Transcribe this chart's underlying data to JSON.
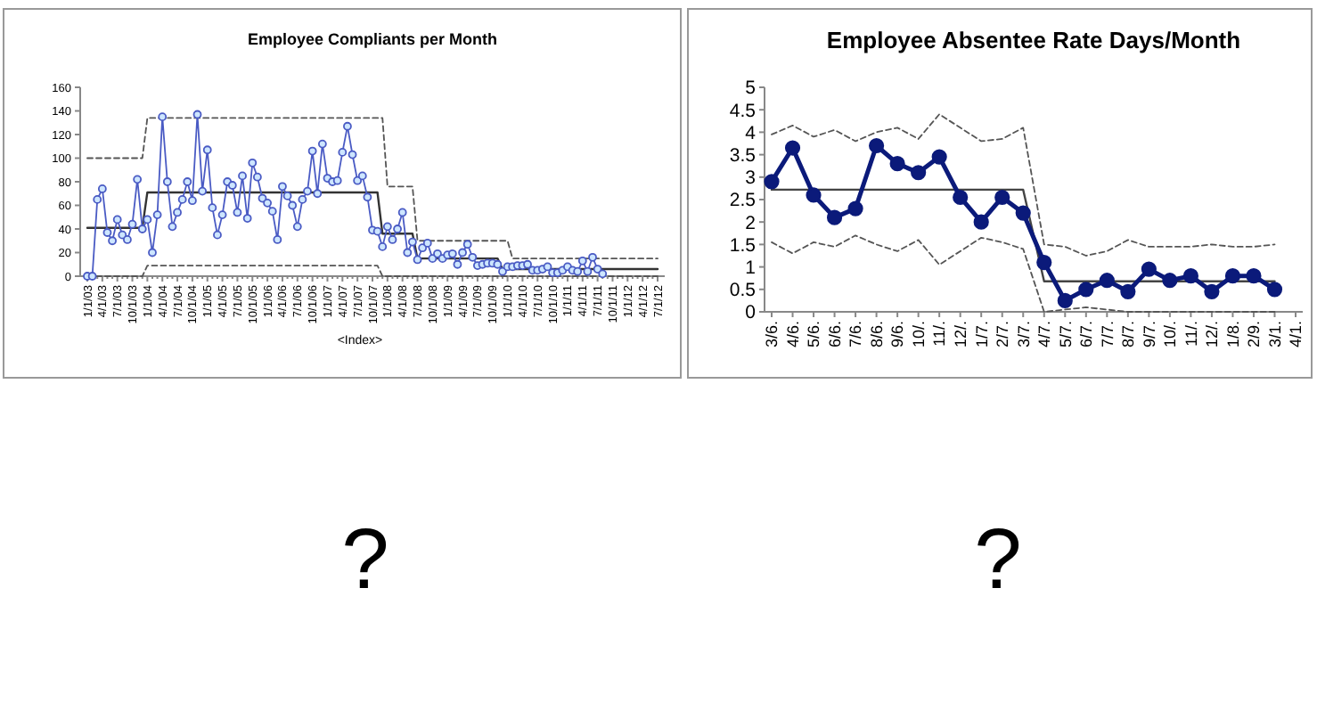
{
  "chart_data": [
    {
      "type": "line",
      "title": "Employee Compliants per Month",
      "xlabel": "<Index>",
      "marker": "circle",
      "ylim": [
        0,
        160
      ],
      "yticks": [
        0,
        20,
        40,
        60,
        80,
        100,
        120,
        140,
        160
      ],
      "annotations": [
        "?"
      ],
      "categories": [
        "1/1/03",
        null,
        null,
        "4/1/03",
        null,
        null,
        "7/1/03",
        null,
        null,
        "10/1/03",
        null,
        null,
        "1/1/04",
        null,
        null,
        "4/1/04",
        null,
        null,
        "7/1/04",
        null,
        null,
        "10/1/04",
        null,
        null,
        "1/1/05",
        null,
        null,
        "4/1/05",
        null,
        null,
        "7/1/05",
        null,
        null,
        "10/1/05",
        null,
        null,
        "1/1/06",
        null,
        null,
        "4/1/06",
        null,
        null,
        "7/1/06",
        null,
        null,
        "10/1/06",
        null,
        null,
        "1/1/07",
        null,
        null,
        "4/1/07",
        null,
        null,
        "7/1/07",
        null,
        null,
        "10/1/07",
        null,
        null,
        "1/1/08",
        null,
        null,
        "4/1/08",
        null,
        null,
        "7/1/08",
        null,
        null,
        "10/1/08",
        null,
        null,
        "1/1/09",
        null,
        null,
        "4/1/09",
        null,
        null,
        "7/1/09",
        null,
        null,
        "10/1/09",
        null,
        null,
        "1/1/10",
        null,
        null,
        "4/1/10",
        null,
        null,
        "7/1/10",
        null,
        null,
        "10/1/10",
        null,
        null,
        "1/1/11",
        null,
        null,
        "4/1/11",
        null,
        null,
        "7/1/11",
        null,
        null,
        "10/1/11",
        null,
        null,
        "1/1/12",
        null,
        null,
        "4/1/12",
        null,
        null,
        "7/1/12"
      ],
      "series": [
        {
          "color": "#333333",
          "marker": "none",
          "values": [
            41,
            41,
            41,
            41,
            41,
            41,
            41,
            41,
            41,
            41,
            41,
            41,
            71,
            71,
            71,
            71,
            71,
            71,
            71,
            71,
            71,
            71,
            71,
            71,
            71,
            71,
            71,
            71,
            71,
            71,
            71,
            71,
            71,
            71,
            71,
            71,
            71,
            71,
            71,
            71,
            71,
            71,
            71,
            71,
            71,
            71,
            71,
            71,
            71,
            71,
            71,
            71,
            71,
            71,
            71,
            71,
            71,
            71,
            71,
            36,
            36,
            36,
            36,
            36,
            36,
            36,
            15,
            15,
            15,
            15,
            15,
            15,
            15,
            15,
            15,
            15,
            15,
            15,
            15,
            15,
            15,
            15,
            15,
            6,
            6,
            6,
            6,
            6,
            6,
            6,
            6,
            6,
            6,
            6,
            6,
            6,
            6,
            6,
            6,
            6,
            6,
            6,
            6,
            6,
            6,
            6,
            6,
            6,
            6,
            6,
            6,
            6,
            6,
            6,
            6
          ]
        },
        {
          "color": "#555555",
          "marker": "none",
          "line_style": "dashed",
          "values": [
            100,
            100,
            100,
            100,
            100,
            100,
            100,
            100,
            100,
            100,
            100,
            100,
            134,
            134,
            134,
            134,
            134,
            134,
            134,
            134,
            134,
            134,
            134,
            134,
            134,
            134,
            134,
            134,
            134,
            134,
            134,
            134,
            134,
            134,
            134,
            134,
            134,
            134,
            134,
            134,
            134,
            134,
            134,
            134,
            134,
            134,
            134,
            134,
            134,
            134,
            134,
            134,
            134,
            134,
            134,
            134,
            134,
            134,
            134,
            134,
            76,
            76,
            76,
            76,
            76,
            76,
            30,
            30,
            30,
            30,
            30,
            30,
            30,
            30,
            30,
            30,
            30,
            30,
            30,
            30,
            30,
            30,
            30,
            30,
            30,
            15,
            15,
            15,
            15,
            15,
            15,
            15,
            15,
            15,
            15,
            15,
            15,
            15,
            15,
            15,
            15,
            15,
            15,
            15,
            15,
            15,
            15,
            15,
            15,
            15,
            15,
            15,
            15,
            15,
            15
          ]
        },
        {
          "color": "#555555",
          "marker": "none",
          "line_style": "dashed",
          "values": [
            0,
            0,
            0,
            0,
            0,
            0,
            0,
            0,
            0,
            0,
            0,
            0,
            9,
            9,
            9,
            9,
            9,
            9,
            9,
            9,
            9,
            9,
            9,
            9,
            9,
            9,
            9,
            9,
            9,
            9,
            9,
            9,
            9,
            9,
            9,
            9,
            9,
            9,
            9,
            9,
            9,
            9,
            9,
            9,
            9,
            9,
            9,
            9,
            9,
            9,
            9,
            9,
            9,
            9,
            9,
            9,
            9,
            9,
            9,
            0,
            0,
            0,
            0,
            0,
            0,
            0,
            0,
            0,
            0,
            0,
            0,
            0,
            0,
            0,
            0,
            0,
            0,
            0,
            0,
            0,
            0,
            0,
            0,
            0,
            0,
            0,
            0,
            0,
            0,
            0,
            0,
            0,
            0,
            0,
            0,
            0,
            0,
            0,
            0,
            0,
            0,
            0,
            0,
            0,
            0,
            0,
            0,
            0,
            0,
            0,
            0,
            0,
            0,
            0,
            0
          ]
        },
        {
          "color": "#4a5bc4",
          "values": [
            0,
            0,
            65,
            74,
            37,
            30,
            48,
            35,
            31,
            44,
            82,
            40,
            48,
            20,
            52,
            135,
            80,
            42,
            54,
            65,
            80,
            64,
            137,
            72,
            107,
            58,
            35,
            52,
            80,
            77,
            54,
            85,
            49,
            96,
            84,
            66,
            62,
            55,
            31,
            76,
            68,
            60,
            42,
            65,
            72,
            106,
            70,
            112,
            83,
            80,
            81,
            105,
            127,
            103,
            81,
            85,
            67,
            39,
            38,
            25,
            42,
            31,
            40,
            54,
            20,
            29,
            14,
            24,
            28,
            15,
            19,
            15,
            18,
            19,
            10,
            20,
            27,
            16,
            9,
            10,
            11,
            11,
            10,
            4,
            8,
            8,
            9,
            9,
            10,
            5,
            5,
            6,
            8,
            3,
            3,
            5,
            8,
            5,
            4,
            13,
            4,
            16,
            6,
            2,
            null,
            null,
            null,
            null,
            null,
            null,
            null,
            null,
            null,
            null,
            null
          ]
        }
      ]
    },
    {
      "type": "line",
      "title": "Employee Absentee Rate Days/Month",
      "marker": "circle",
      "ylim": [
        0,
        5
      ],
      "yticks": [
        0,
        0.5,
        1,
        1.5,
        2,
        2.5,
        3,
        3.5,
        4,
        4.5,
        5
      ],
      "annotations": [
        "?"
      ],
      "categories": [
        "3/6.",
        "4/6.",
        "5/6.",
        "6/6.",
        "7/6.",
        "8/6.",
        "9/6.",
        "10/.",
        "11/.",
        "12/.",
        "1/7.",
        "2/7.",
        "3/7.",
        "4/7.",
        "5/7.",
        "6/7.",
        "7/7.",
        "8/7.",
        "9/7.",
        "10/.",
        "11/.",
        "12/.",
        "1/8.",
        "2/9.",
        "3/1.",
        "4/1."
      ],
      "series": [
        {
          "color": "#444444",
          "marker": "none",
          "values": [
            2.72,
            2.72,
            2.72,
            2.72,
            2.72,
            2.72,
            2.72,
            2.72,
            2.72,
            2.72,
            2.72,
            2.72,
            2.72,
            0.68,
            0.68,
            0.68,
            0.68,
            0.68,
            0.68,
            0.68,
            0.68,
            0.68,
            0.68,
            0.68,
            0.68,
            null
          ]
        },
        {
          "color": "#555555",
          "marker": "none",
          "line_style": "dashed",
          "values": [
            3.95,
            4.15,
            3.9,
            4.05,
            3.8,
            4.0,
            4.1,
            3.85,
            4.4,
            4.1,
            3.8,
            3.85,
            4.1,
            1.5,
            1.45,
            1.25,
            1.35,
            1.6,
            1.45,
            1.45,
            1.45,
            1.5,
            1.45,
            1.45,
            1.5,
            null
          ]
        },
        {
          "color": "#555555",
          "marker": "none",
          "line_style": "dashed",
          "values": [
            1.55,
            1.3,
            1.55,
            1.45,
            1.7,
            1.5,
            1.35,
            1.6,
            1.05,
            1.35,
            1.65,
            1.55,
            1.4,
            0,
            0.05,
            0.1,
            0.05,
            0,
            0,
            0,
            0,
            0,
            0,
            0,
            0,
            null
          ]
        },
        {
          "color": "#0b1a7a",
          "values": [
            2.9,
            3.65,
            2.6,
            2.1,
            2.3,
            3.7,
            3.3,
            3.1,
            3.45,
            2.55,
            2.0,
            2.55,
            2.2,
            1.1,
            0.25,
            0.5,
            0.7,
            0.45,
            0.95,
            0.7,
            0.8,
            0.45,
            0.8,
            0.8,
            0.5,
            null
          ]
        }
      ]
    }
  ]
}
